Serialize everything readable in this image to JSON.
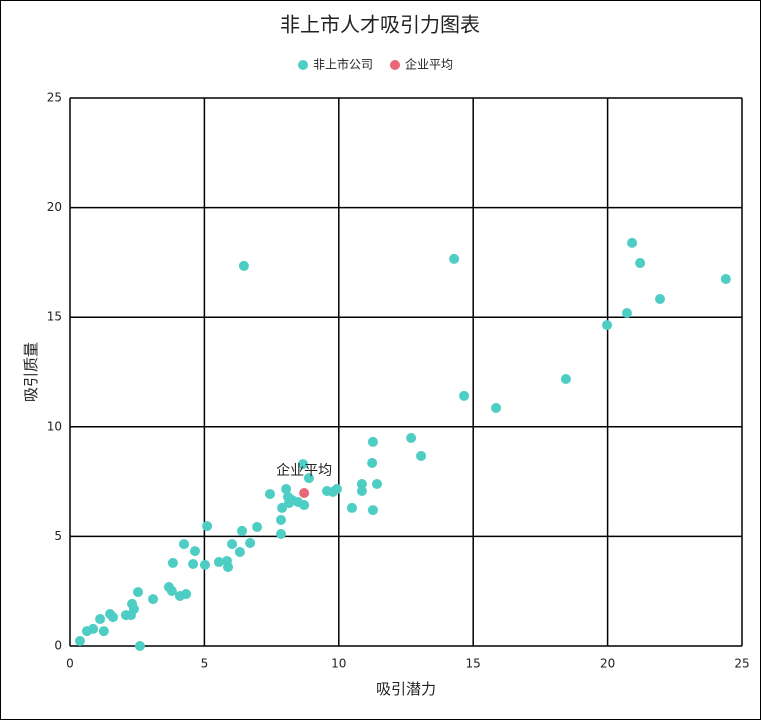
{
  "chart_data": {
    "type": "scatter",
    "title": "非上市人才吸引力图表",
    "x_label": "吸引潜力",
    "y_label": "吸引质量",
    "xlim": [
      0,
      25
    ],
    "xticks": [
      0,
      5,
      10,
      15,
      20,
      25
    ],
    "ylim": [
      0,
      25
    ],
    "yticks": [
      0,
      5,
      10,
      15,
      20,
      25
    ],
    "grid": true,
    "legend": "top",
    "series": [
      {
        "name": "非上市公司",
        "color": "#4ecdc4",
        "x": [
          0.37,
          0.63,
          0.86,
          1.12,
          1.26,
          1.49,
          1.6,
          2.08,
          2.31,
          2.27,
          2.38,
          2.53,
          2.6,
          3.09,
          3.68,
          3.79,
          3.83,
          4.09,
          4.32,
          4.24,
          4.65,
          4.58,
          5.02,
          5.1,
          5.54,
          5.84,
          5.88,
          6.03,
          6.32,
          6.4,
          6.7,
          6.96,
          6.47,
          7.44,
          7.85,
          7.85,
          7.89,
          8.04,
          8.11,
          8.15,
          8.26,
          8.48,
          8.67,
          8.71,
          8.89,
          9.56,
          9.78,
          9.93,
          10.49,
          10.86,
          10.86,
          11.24,
          11.27,
          11.27,
          11.42,
          12.69,
          13.06,
          14.29,
          14.66,
          15.85,
          18.45,
          19.98,
          20.72,
          20.91,
          21.21,
          21.95,
          24.4
        ],
        "values": [
          0.23,
          0.68,
          0.78,
          1.23,
          0.68,
          1.46,
          1.32,
          1.41,
          1.92,
          1.41,
          1.69,
          2.46,
          0,
          2.14,
          2.69,
          2.51,
          3.79,
          2.28,
          2.37,
          4.65,
          4.33,
          3.74,
          3.7,
          5.47,
          3.83,
          3.88,
          3.6,
          4.65,
          4.29,
          5.25,
          4.7,
          5.43,
          17.34,
          6.93,
          5.75,
          5.11,
          6.3,
          7.16,
          6.8,
          6.52,
          6.66,
          6.57,
          8.3,
          6.43,
          7.66,
          7.07,
          7.03,
          7.16,
          6.3,
          7.07,
          7.39,
          8.35,
          9.31,
          6.2,
          7.39,
          9.49,
          8.67,
          17.66,
          11.41,
          10.86,
          12.18,
          14.64,
          15.19,
          18.39,
          17.47,
          15.83,
          16.74
        ]
      },
      {
        "name": "企业平均",
        "color": "#e8677a",
        "x": [
          8.71
        ],
        "values": [
          6.98
        ]
      }
    ]
  }
}
